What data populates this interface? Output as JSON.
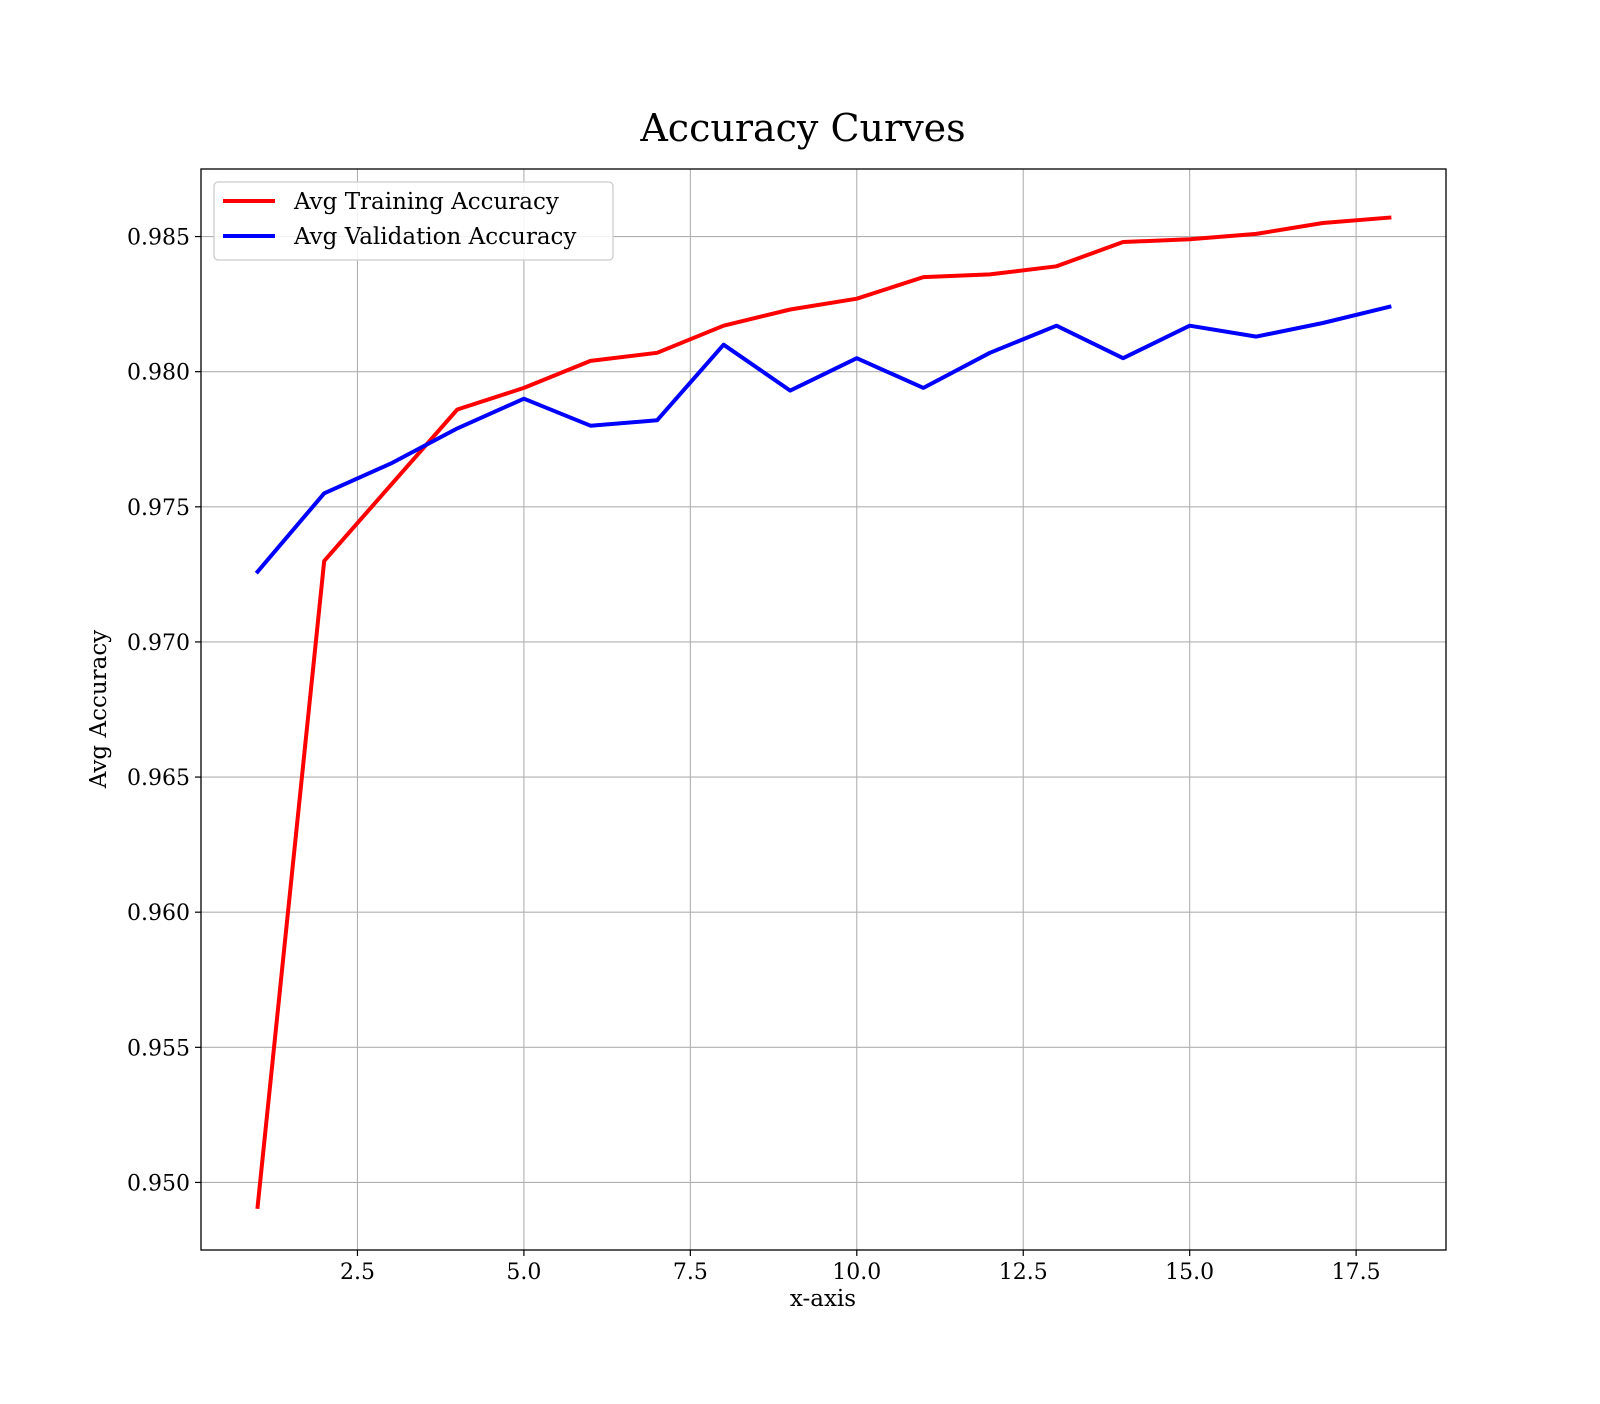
{
  "chart_data": {
    "type": "line",
    "title": "Accuracy Curves",
    "xlabel": "x-axis",
    "ylabel": "Avg Accuracy",
    "xlim": [
      0.15,
      18.85
    ],
    "ylim": [
      0.9475,
      0.9875
    ],
    "x_ticks": [
      2.5,
      5.0,
      7.5,
      10.0,
      12.5,
      15.0,
      17.5
    ],
    "x_tick_labels": [
      "2.5",
      "5.0",
      "7.5",
      "10.0",
      "12.5",
      "15.0",
      "17.5"
    ],
    "y_ticks": [
      0.95,
      0.955,
      0.96,
      0.965,
      0.97,
      0.975,
      0.98,
      0.985
    ],
    "y_tick_labels": [
      "0.950",
      "0.955",
      "0.960",
      "0.965",
      "0.970",
      "0.975",
      "0.980",
      "0.985"
    ],
    "grid": true,
    "legend_position": "top-left",
    "x": [
      1,
      2,
      3,
      4,
      5,
      6,
      7,
      8,
      9,
      10,
      11,
      12,
      13,
      14,
      15,
      16,
      17,
      18
    ],
    "series": [
      {
        "name": "Avg Training Accuracy",
        "color": "#ff0000",
        "values": [
          0.9491,
          0.973,
          0.9758,
          0.9786,
          0.9794,
          0.9804,
          0.9807,
          0.9817,
          0.9823,
          0.9827,
          0.9835,
          0.9836,
          0.9839,
          0.9848,
          0.9849,
          0.9851,
          0.9855,
          0.9857
        ]
      },
      {
        "name": "Avg Validation Accuracy",
        "color": "#0000ff",
        "values": [
          0.9726,
          0.9755,
          0.9766,
          0.9779,
          0.979,
          0.978,
          0.9782,
          0.981,
          0.9793,
          0.9805,
          0.9794,
          0.9807,
          0.9817,
          0.9805,
          0.9817,
          0.9813,
          0.9818,
          0.9824
        ]
      }
    ]
  },
  "colors": {
    "background": "#ffffff",
    "grid": "#b0b0b0",
    "axes": "#000000",
    "legend_border": "#cccccc"
  }
}
